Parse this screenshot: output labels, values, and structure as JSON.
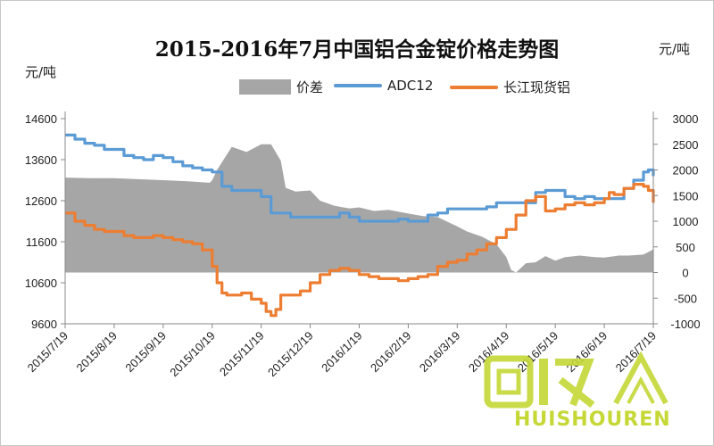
{
  "colors": {
    "spread": "#a6a6a6",
    "adc12": "#5b9bd5",
    "changjiang": "#ed7d31",
    "axis": "#888888",
    "watermark": "#c5d836"
  },
  "chart_data": {
    "type": "line",
    "title": "2015-2016年7月中国铝合金锭价格走势图",
    "y_left_unit": "元/吨",
    "y_right_unit": "元/吨",
    "legend_placement": "top",
    "grid": false,
    "y_left": {
      "min": 9600,
      "max": 14600,
      "ticks": [
        "9600",
        "10600",
        "11600",
        "12600",
        "13600",
        "14600"
      ]
    },
    "y_right": {
      "min": -1000,
      "max": 3000,
      "ticks": [
        "-1000",
        "-500",
        "0",
        "500",
        "1000",
        "1500",
        "2000",
        "2500",
        "3000"
      ]
    },
    "x_ticks": [
      "2015/7/19",
      "2015/8/19",
      "2015/9/19",
      "2015/10/19",
      "2015/11/19",
      "2015/12/19",
      "2016/1/19",
      "2016/2/19",
      "2016/3/19",
      "2016/4/19",
      "2016/5/19",
      "2016/6/19",
      "2016/7/19"
    ],
    "series": [
      {
        "name": "价差",
        "axis": "right",
        "kind": "area",
        "x": [
          0,
          0.5,
          1,
          1.5,
          2,
          2.5,
          2.95,
          3.0,
          3.1,
          3.4,
          3.7,
          4.0,
          4.2,
          4.4,
          4.5,
          4.7,
          5.0,
          5.2,
          5.5,
          5.8,
          6.0,
          6.3,
          6.6,
          7.0,
          7.3,
          7.6,
          8.0,
          8.2,
          8.5,
          8.8,
          9.0,
          9.1,
          9.2,
          9.4,
          9.6,
          9.8,
          10.0,
          10.2,
          10.5,
          10.8,
          11.0,
          11.3,
          11.5,
          11.8,
          12.0
        ],
        "values": [
          1850,
          1840,
          1840,
          1820,
          1800,
          1780,
          1750,
          1800,
          2000,
          2450,
          2350,
          2500,
          2500,
          2180,
          1650,
          1580,
          1600,
          1400,
          1300,
          1250,
          1270,
          1200,
          1220,
          1150,
          1100,
          1080,
          900,
          800,
          700,
          550,
          300,
          50,
          0,
          180,
          200,
          320,
          230,
          300,
          330,
          300,
          290,
          330,
          330,
          350,
          450
        ]
      },
      {
        "name": "ADC12",
        "axis": "left",
        "x": [
          0,
          0.2,
          0.4,
          0.6,
          0.8,
          1.0,
          1.2,
          1.4,
          1.6,
          1.8,
          2.0,
          2.2,
          2.4,
          2.6,
          2.8,
          3.0,
          3.2,
          3.4,
          3.6,
          3.8,
          4.0,
          4.2,
          4.4,
          4.6,
          4.8,
          5.0,
          5.2,
          5.4,
          5.6,
          5.8,
          6.0,
          6.2,
          6.4,
          6.6,
          6.8,
          7.0,
          7.2,
          7.4,
          7.6,
          7.8,
          8.0,
          8.2,
          8.4,
          8.6,
          8.8,
          9.0,
          9.2,
          9.4,
          9.6,
          9.8,
          10.0,
          10.2,
          10.4,
          10.6,
          10.8,
          11.0,
          11.2,
          11.4,
          11.6,
          11.8,
          11.9,
          12.0
        ],
        "values": [
          14200,
          14100,
          14000,
          13950,
          13850,
          13850,
          13700,
          13650,
          13600,
          13700,
          13650,
          13550,
          13450,
          13400,
          13350,
          13300,
          12950,
          12850,
          12850,
          12850,
          12700,
          12300,
          12300,
          12200,
          12200,
          12200,
          12200,
          12200,
          12300,
          12200,
          12100,
          12100,
          12100,
          12100,
          12150,
          12100,
          12100,
          12250,
          12300,
          12400,
          12400,
          12400,
          12400,
          12450,
          12550,
          12550,
          12550,
          12550,
          12800,
          12850,
          12850,
          12700,
          12650,
          12700,
          12650,
          12650,
          12650,
          12900,
          13100,
          13300,
          13350,
          13200
        ]
      },
      {
        "name": "长江现货铝",
        "axis": "left",
        "x": [
          0,
          0.2,
          0.4,
          0.6,
          0.8,
          1.0,
          1.2,
          1.4,
          1.6,
          1.8,
          2.0,
          2.2,
          2.4,
          2.6,
          2.8,
          3.0,
          3.1,
          3.2,
          3.3,
          3.4,
          3.6,
          3.8,
          4.0,
          4.1,
          4.2,
          4.3,
          4.4,
          4.6,
          4.8,
          5.0,
          5.2,
          5.4,
          5.6,
          5.8,
          6.0,
          6.2,
          6.4,
          6.6,
          6.8,
          7.0,
          7.2,
          7.4,
          7.6,
          7.8,
          8.0,
          8.2,
          8.4,
          8.6,
          8.8,
          9.0,
          9.2,
          9.4,
          9.6,
          9.8,
          10.0,
          10.2,
          10.4,
          10.6,
          10.8,
          11.0,
          11.1,
          11.2,
          11.4,
          11.6,
          11.8,
          11.9,
          12.0
        ],
        "values": [
          12300,
          12100,
          12000,
          11900,
          11850,
          11850,
          11750,
          11700,
          11700,
          11750,
          11700,
          11650,
          11600,
          11550,
          11400,
          11000,
          10600,
          10350,
          10300,
          10300,
          10350,
          10200,
          10100,
          9900,
          9800,
          9950,
          10300,
          10300,
          10400,
          10600,
          10800,
          10900,
          10950,
          10900,
          10800,
          10750,
          10700,
          10700,
          10650,
          10700,
          10750,
          10800,
          11000,
          11100,
          11150,
          11300,
          11400,
          11550,
          11700,
          11900,
          12250,
          12600,
          12700,
          12350,
          12400,
          12500,
          12550,
          12500,
          12550,
          12650,
          12800,
          12750,
          12900,
          13000,
          12950,
          12850,
          12550
        ]
      }
    ]
  },
  "watermark": {
    "logo_chars": "回收",
    "brand_text": "HUISHOUREN"
  }
}
